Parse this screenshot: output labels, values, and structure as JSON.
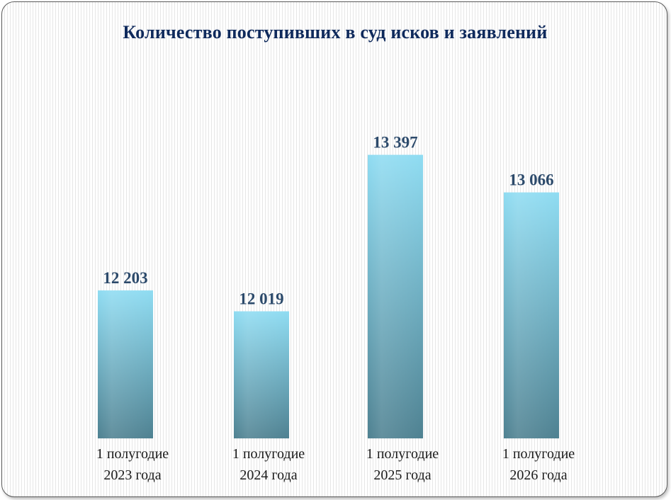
{
  "chart_data": {
    "type": "bar",
    "title": "Количество поступивших  в суд исков и заявлений",
    "categories": [
      [
        "1 полугодие",
        "2023 года"
      ],
      [
        "1 полугодие",
        "2024 года"
      ],
      [
        "1 полугодие",
        "2025 года"
      ],
      [
        "1 полугодие",
        "2026 года"
      ]
    ],
    "values": [
      12203,
      12019,
      13397,
      13066
    ],
    "value_labels": [
      "12 203",
      "12 019",
      "13 397",
      "13 066"
    ],
    "xlabel": "",
    "ylabel": "",
    "ylim": [
      10900,
      13650
    ],
    "grid": false,
    "legend": "none",
    "colors": {
      "bar_top": "#8fdcf2",
      "bar_bottom": "#4e8191",
      "title": "#0f2a5c",
      "value_label": "#2c4a6b"
    }
  }
}
